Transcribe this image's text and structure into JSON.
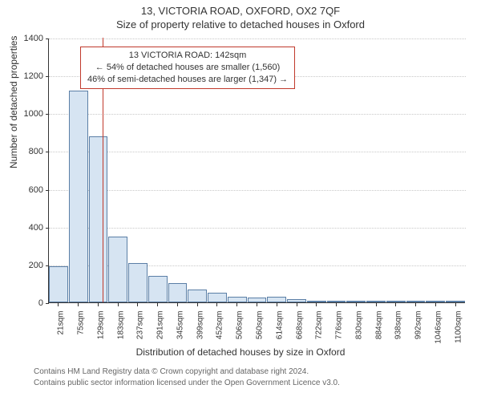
{
  "header": {
    "address": "13, VICTORIA ROAD, OXFORD, OX2 7QF",
    "subtitle": "Size of property relative to detached houses in Oxford"
  },
  "axes": {
    "ylabel": "Number of detached properties",
    "xlabel": "Distribution of detached houses by size in Oxford"
  },
  "chart": {
    "type": "histogram",
    "ylim": [
      0,
      1400
    ],
    "ytick_step": 200,
    "yticks": [
      0,
      200,
      400,
      600,
      800,
      1000,
      1200,
      1400
    ],
    "bar_fill": "#d6e4f2",
    "bar_stroke": "#5b7fa6",
    "grid_color": "#c8c8c8",
    "background_color": "#ffffff",
    "bar_width_ratio": 1.0,
    "reference_line_color": "#c0392b",
    "reference_value_sqm": 142,
    "x_range_sqm": [
      0,
      1110
    ],
    "categories": [
      "21sqm",
      "75sqm",
      "129sqm",
      "183sqm",
      "237sqm",
      "291sqm",
      "345sqm",
      "399sqm",
      "452sqm",
      "506sqm",
      "560sqm",
      "614sqm",
      "668sqm",
      "722sqm",
      "776sqm",
      "830sqm",
      "884sqm",
      "938sqm",
      "992sqm",
      "1046sqm",
      "1100sqm"
    ],
    "values": [
      190,
      1120,
      880,
      350,
      210,
      140,
      100,
      70,
      50,
      30,
      25,
      30,
      15,
      10,
      8,
      5,
      3,
      2,
      2,
      1,
      1
    ]
  },
  "info_box": {
    "line1": "13 VICTORIA ROAD: 142sqm",
    "line2": "← 54% of detached houses are smaller (1,560)",
    "line3": "46% of semi-detached houses are larger (1,347) →"
  },
  "footer": {
    "line1": "Contains HM Land Registry data © Crown copyright and database right 2024.",
    "line2": "Contains public sector information licensed under the Open Government Licence v3.0."
  }
}
